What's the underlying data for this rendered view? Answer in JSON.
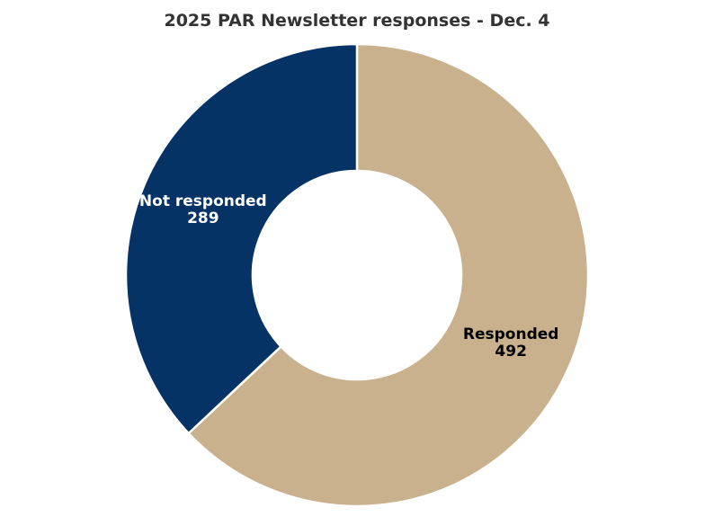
{
  "chart_data": {
    "type": "pie",
    "title": "2025 PAR Newsletter responses - Dec. 4",
    "categories": [
      "Responded",
      "Not responded"
    ],
    "values": [
      492,
      289
    ],
    "colors": [
      "#c8b18c",
      "#053366"
    ],
    "label_colors": [
      "#000000",
      "#ffffff"
    ]
  }
}
